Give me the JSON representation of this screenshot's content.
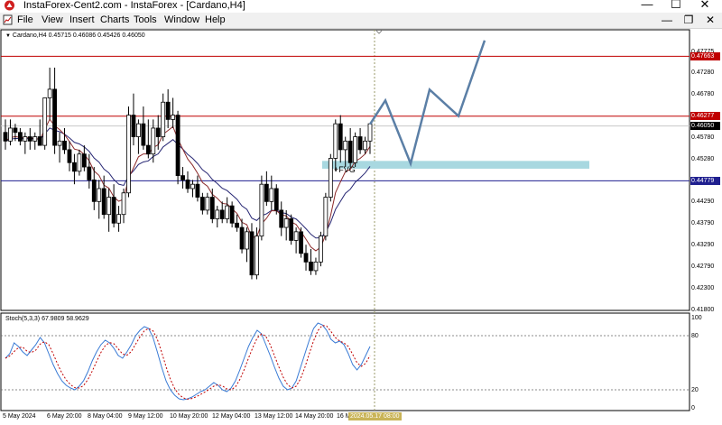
{
  "window": {
    "title": "InstaForex-Cent2.com - InstaForex - [Cardano,H4]",
    "controls": {
      "minimize": "—",
      "maximize": "☐",
      "close": "✕"
    }
  },
  "menu": {
    "items": [
      "File",
      "View",
      "Insert",
      "Charts",
      "Tools",
      "Window",
      "Help"
    ],
    "child_controls": {
      "minimize": "—",
      "restore": "❐",
      "close": "✕"
    }
  },
  "chart": {
    "symbol_info": "Cardano,H4  0.45715 0.46086 0.45426 0.46050",
    "fvg_label": "+FVG",
    "price_scale": [
      "0.47775",
      "0.47280",
      "0.46780",
      "0.45780",
      "0.45280",
      "0.44290",
      "0.43790",
      "0.43290",
      "0.42790",
      "0.42300",
      "0.41800"
    ],
    "highlight_levels": [
      {
        "value": "0.47663",
        "color": "#c00000"
      },
      {
        "value": "0.46277",
        "color": "#c00000"
      },
      {
        "value": "0.46050",
        "color": "#000000"
      },
      {
        "value": "0.44779",
        "color": "#1f1f8f"
      }
    ],
    "date_labels": [
      "5 May 2024",
      "6 May 20:00",
      "8 May 04:00",
      "9 May 12:00",
      "10 May 20:00",
      "12 May 04:00",
      "13 May 12:00",
      "14 May 20:00",
      "16 M"
    ],
    "cursor_date": "2024.05.17 08:00"
  },
  "indicator": {
    "info": "Stoch(5,3,3) 67.9809 58.9629",
    "scale": [
      "100",
      "80",
      "20",
      "0"
    ]
  },
  "colors": {
    "bull_candle": "#ffffff",
    "bear_candle": "#000000",
    "resistance_line": "#c00000",
    "support_line": "#1f1f8f",
    "forecast_path": "#5b7fa6",
    "fvg_zone": "#a8d8e0",
    "ma_slow": "#262673",
    "ma_fast": "#8c2a2a",
    "stoch_main": "#3a7bd5",
    "stoch_signal": "#c00000"
  },
  "chart_data": {
    "type": "candlestick",
    "symbol": "Cardano",
    "timeframe": "H4",
    "ohlc_last": {
      "open": 0.45715,
      "high": 0.46086,
      "low": 0.45426,
      "close": 0.4605
    },
    "levels": [
      0.47663,
      0.46277,
      0.44779
    ],
    "ylim": [
      0.416,
      0.481
    ],
    "stoch": {
      "k": 67.9809,
      "d": 58.9629,
      "levels": [
        80,
        20
      ],
      "ylim": [
        0,
        100
      ]
    },
    "candles": [
      [
        0.459,
        0.462,
        0.455,
        0.457
      ],
      [
        0.457,
        0.462,
        0.456,
        0.46
      ],
      [
        0.46,
        0.461,
        0.457,
        0.459
      ],
      [
        0.459,
        0.46,
        0.456,
        0.457
      ],
      [
        0.457,
        0.459,
        0.454,
        0.458
      ],
      [
        0.458,
        0.46,
        0.455,
        0.457
      ],
      [
        0.457,
        0.459,
        0.455,
        0.458
      ],
      [
        0.458,
        0.462,
        0.456,
        0.456
      ],
      [
        0.456,
        0.467,
        0.455,
        0.467
      ],
      [
        0.467,
        0.474,
        0.462,
        0.469
      ],
      [
        0.469,
        0.474,
        0.454,
        0.456
      ],
      [
        0.456,
        0.459,
        0.452,
        0.457
      ],
      [
        0.457,
        0.46,
        0.454,
        0.455
      ],
      [
        0.455,
        0.457,
        0.45,
        0.452
      ],
      [
        0.452,
        0.454,
        0.447,
        0.45
      ],
      [
        0.45,
        0.455,
        0.449,
        0.454
      ],
      [
        0.454,
        0.456,
        0.45,
        0.451
      ],
      [
        0.451,
        0.454,
        0.446,
        0.448
      ],
      [
        0.448,
        0.451,
        0.441,
        0.443
      ],
      [
        0.443,
        0.448,
        0.439,
        0.446
      ],
      [
        0.446,
        0.449,
        0.439,
        0.44
      ],
      [
        0.44,
        0.446,
        0.436,
        0.444
      ],
      [
        0.444,
        0.447,
        0.437,
        0.438
      ],
      [
        0.438,
        0.442,
        0.436,
        0.44
      ],
      [
        0.44,
        0.446,
        0.438,
        0.445
      ],
      [
        0.445,
        0.465,
        0.444,
        0.463
      ],
      [
        0.463,
        0.468,
        0.456,
        0.458
      ],
      [
        0.458,
        0.462,
        0.454,
        0.461
      ],
      [
        0.461,
        0.465,
        0.455,
        0.456
      ],
      [
        0.456,
        0.462,
        0.453,
        0.454
      ],
      [
        0.454,
        0.462,
        0.452,
        0.46
      ],
      [
        0.46,
        0.463,
        0.455,
        0.458
      ],
      [
        0.458,
        0.468,
        0.457,
        0.466
      ],
      [
        0.466,
        0.469,
        0.46,
        0.462
      ],
      [
        0.462,
        0.467,
        0.46,
        0.463
      ],
      [
        0.463,
        0.464,
        0.447,
        0.449
      ],
      [
        0.449,
        0.451,
        0.446,
        0.448
      ],
      [
        0.448,
        0.45,
        0.445,
        0.446
      ],
      [
        0.446,
        0.448,
        0.444,
        0.447
      ],
      [
        0.447,
        0.449,
        0.443,
        0.444
      ],
      [
        0.444,
        0.445,
        0.44,
        0.441
      ],
      [
        0.441,
        0.445,
        0.44,
        0.444
      ],
      [
        0.444,
        0.446,
        0.438,
        0.439
      ],
      [
        0.439,
        0.442,
        0.437,
        0.441
      ],
      [
        0.441,
        0.443,
        0.438,
        0.439
      ],
      [
        0.439,
        0.444,
        0.438,
        0.442
      ],
      [
        0.442,
        0.443,
        0.437,
        0.438
      ],
      [
        0.438,
        0.44,
        0.436,
        0.437
      ],
      [
        0.437,
        0.439,
        0.431,
        0.432
      ],
      [
        0.432,
        0.437,
        0.429,
        0.436
      ],
      [
        0.436,
        0.438,
        0.425,
        0.426
      ],
      [
        0.426,
        0.437,
        0.425,
        0.435
      ],
      [
        0.435,
        0.449,
        0.434,
        0.447
      ],
      [
        0.447,
        0.45,
        0.442,
        0.443
      ],
      [
        0.443,
        0.449,
        0.441,
        0.446
      ],
      [
        0.446,
        0.447,
        0.44,
        0.441
      ],
      [
        0.441,
        0.443,
        0.435,
        0.437
      ],
      [
        0.437,
        0.441,
        0.434,
        0.439
      ],
      [
        0.439,
        0.44,
        0.433,
        0.434
      ],
      [
        0.434,
        0.437,
        0.431,
        0.436
      ],
      [
        0.436,
        0.437,
        0.43,
        0.431
      ],
      [
        0.431,
        0.433,
        0.427,
        0.429
      ],
      [
        0.429,
        0.432,
        0.426,
        0.427
      ],
      [
        0.427,
        0.43,
        0.426,
        0.429
      ],
      [
        0.429,
        0.436,
        0.428,
        0.435
      ],
      [
        0.435,
        0.445,
        0.434,
        0.444
      ],
      [
        0.444,
        0.454,
        0.443,
        0.453
      ],
      [
        0.453,
        0.462,
        0.45,
        0.461
      ],
      [
        0.461,
        0.463,
        0.452,
        0.455
      ],
      [
        0.455,
        0.458,
        0.451,
        0.457
      ],
      [
        0.457,
        0.46,
        0.451,
        0.452
      ],
      [
        0.452,
        0.459,
        0.451,
        0.458
      ],
      [
        0.458,
        0.46,
        0.454,
        0.455
      ],
      [
        0.455,
        0.458,
        0.454,
        0.457
      ],
      [
        0.457,
        0.461,
        0.454,
        0.461
      ]
    ]
  }
}
